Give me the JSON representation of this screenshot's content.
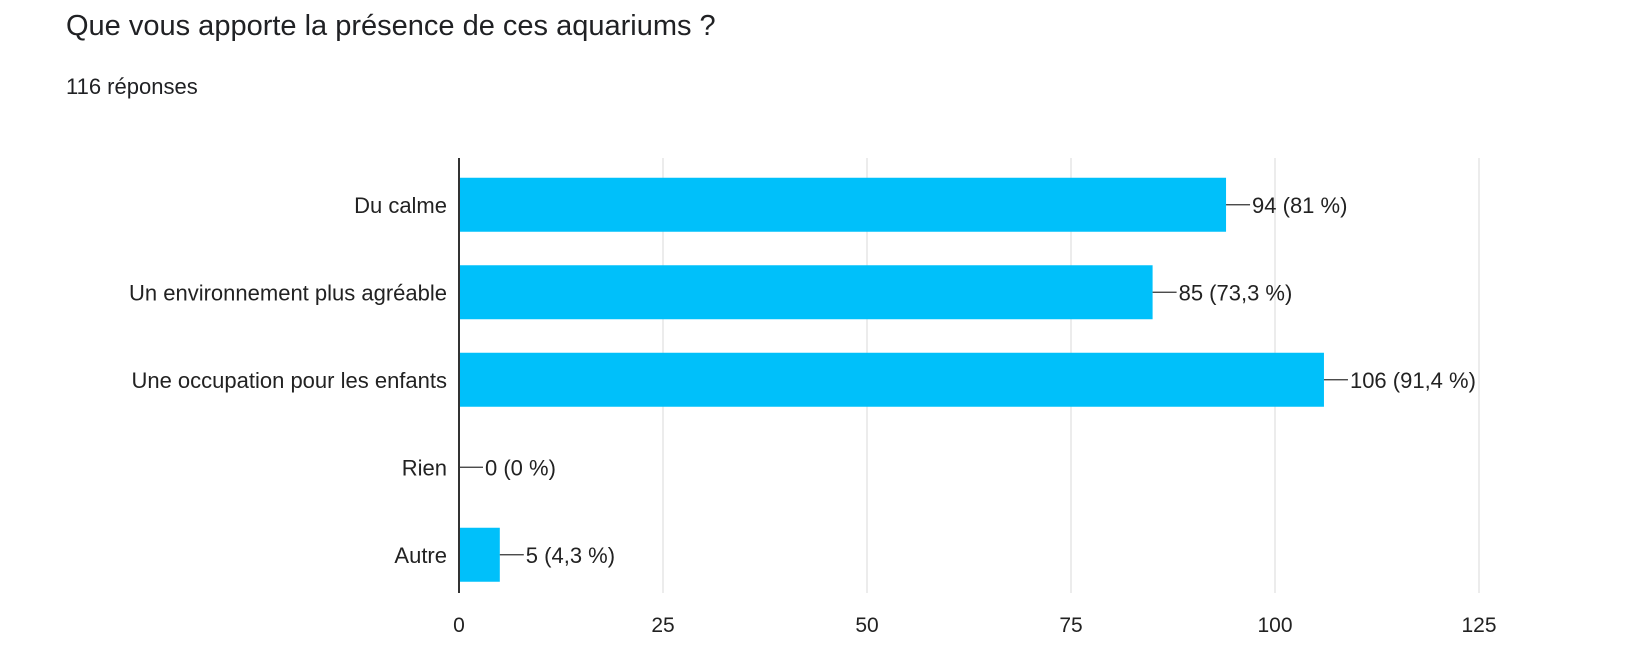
{
  "question": {
    "title": "Que vous apporte la présence de ces aquariums ?",
    "responses": "116 réponses"
  },
  "colors": {
    "bar": "#00C0FA",
    "grid": "#E6E6E6",
    "axis": "#333333",
    "text": "#222222"
  },
  "chart_data": {
    "type": "bar",
    "orientation": "horizontal",
    "title": "Que vous apporte la présence de ces aquariums ?",
    "subtitle": "116 réponses",
    "categories": [
      "Du calme",
      "Un environnement plus agréable",
      "Une occupation pour les enfants",
      "Rien",
      "Autre"
    ],
    "values": [
      94,
      85,
      106,
      0,
      5
    ],
    "data_labels": [
      "94 (81 %)",
      "85 (73,3 %)",
      "106 (91,4 %)",
      "0 (0 %)",
      "5 (4,3 %)"
    ],
    "xlim": [
      0,
      125
    ],
    "xticks": [
      0,
      25,
      50,
      75,
      100,
      125
    ],
    "xtick_labels": [
      "0",
      "25",
      "50",
      "75",
      "100",
      "125"
    ],
    "xlabel": "",
    "ylabel": "",
    "grid": true,
    "legend": "none"
  }
}
